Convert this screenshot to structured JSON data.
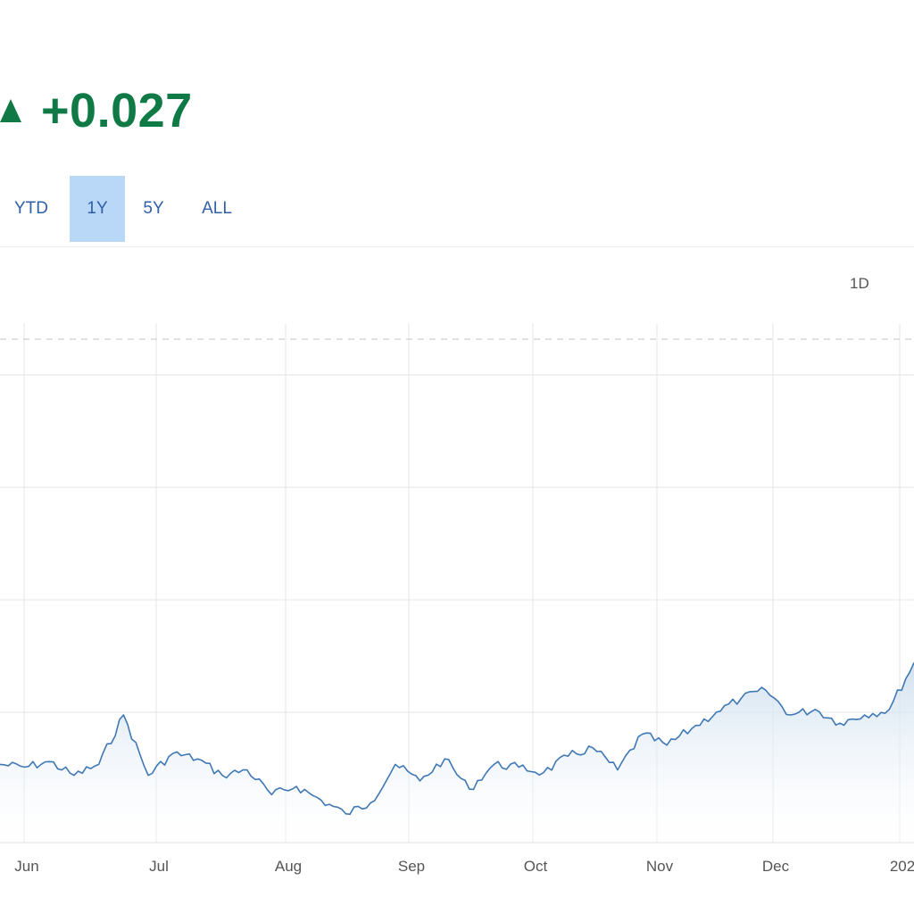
{
  "header": {
    "change_value": "+0.027",
    "change_direction_icon": "triangle-up-icon",
    "change_color": "#0f7a45"
  },
  "range_tabs": [
    {
      "label": "YTD",
      "active": false
    },
    {
      "label": "1Y",
      "active": true
    },
    {
      "label": "5Y",
      "active": false
    },
    {
      "label": "ALL",
      "active": false
    }
  ],
  "interval_tabs": [
    {
      "label": "1D"
    }
  ],
  "colors": {
    "line": "#3f78b5",
    "area_top": "#c9dced",
    "area_bottom": "#ffffff",
    "grid": "#e6e6e6",
    "active_tab": "#b9d7f7",
    "tab_text": "#2f5fa8"
  },
  "chart_data": {
    "type": "area",
    "x_tick_labels": [
      "Jun",
      "Jul",
      "Aug",
      "Sep",
      "Oct",
      "Nov",
      "Dec",
      "202"
    ],
    "y_tick_labels": [],
    "grid": true,
    "values": [
      0.2,
      0.19,
      0.21,
      0.16,
      0.2,
      0.38,
      0.16,
      0.24,
      0.22,
      0.16,
      0.18,
      0.09,
      0.12,
      0.07,
      0.02,
      0.06,
      0.2,
      0.14,
      0.22,
      0.11,
      0.2,
      0.19,
      0.17,
      0.23,
      0.26,
      0.18,
      0.31,
      0.27,
      0.33,
      0.39,
      0.44,
      0.47,
      0.38,
      0.4,
      0.35,
      0.38,
      0.4,
      0.57
    ]
  }
}
